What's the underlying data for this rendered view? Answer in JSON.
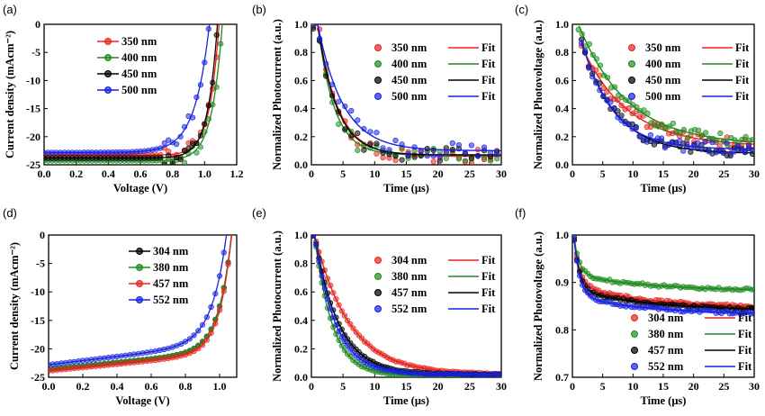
{
  "colors": {
    "red": "#e8231c",
    "green": "#1e8c1e",
    "black": "#000000",
    "blue": "#1822e0"
  },
  "chart_data": [
    {
      "panel": "(a)",
      "type": "scatter",
      "xlabel": "Voltage (V)",
      "ylabel": "Current density (mAcm⁻²)",
      "xlim": [
        0,
        1.2
      ],
      "ylim": [
        -25,
        0
      ],
      "xticks": [
        "0.0",
        "0.2",
        "0.4",
        "0.6",
        "0.8",
        "1.0",
        "1.2"
      ],
      "yticks": [
        "0",
        "-5",
        "-10",
        "-15",
        "-20",
        "-25"
      ],
      "series": [
        {
          "name": "350 nm",
          "color": "red",
          "jsc": -23.3,
          "voc": 1.09,
          "n": 0.06,
          "start": 0.68
        },
        {
          "name": "400 nm",
          "color": "green",
          "jsc": -24.3,
          "voc": 1.11,
          "n": 0.065,
          "start": 0.85
        },
        {
          "name": "450 nm",
          "color": "black",
          "jsc": -23.8,
          "voc": 1.08,
          "n": 0.06,
          "start": 0.7
        },
        {
          "name": "500 nm",
          "color": "blue",
          "jsc": -22.8,
          "voc": 1.03,
          "n": 0.09,
          "start": 0.6
        }
      ]
    },
    {
      "panel": "(b)",
      "type": "scatter",
      "xlabel": "Time (μs)",
      "ylabel": "Normalized Photocurrent (a.u.)",
      "xlim": [
        0,
        30
      ],
      "ylim": [
        0,
        1.0
      ],
      "xticks": [
        "0",
        "5",
        "10",
        "15",
        "20",
        "25",
        "30"
      ],
      "yticks": [
        "0.0",
        "0.2",
        "0.4",
        "0.6",
        "0.8",
        "1.0"
      ],
      "fit_label": "Fit",
      "series": [
        {
          "name": "350 nm",
          "color": "red",
          "t0": 1,
          "tau": 3.2,
          "floor": 0.06
        },
        {
          "name": "400 nm",
          "color": "green",
          "t0": 1,
          "tau": 2.6,
          "floor": 0.07
        },
        {
          "name": "450 nm",
          "color": "black",
          "t0": 1,
          "tau": 3.0,
          "floor": 0.07
        },
        {
          "name": "500 nm",
          "color": "blue",
          "t0": 1,
          "tau": 4.0,
          "floor": 0.1
        }
      ]
    },
    {
      "panel": "(c)",
      "type": "scatter",
      "xlabel": "Time (μs)",
      "ylabel": "Normalized Photovoltage (a.u.)",
      "xlim": [
        0,
        30
      ],
      "ylim": [
        0,
        1.0
      ],
      "xticks": [
        "0",
        "5",
        "10",
        "15",
        "20",
        "25",
        "30"
      ],
      "yticks": [
        "0.0",
        "0.2",
        "0.4",
        "0.6",
        "0.8",
        "1.0"
      ],
      "fit_label": "Fit",
      "series": [
        {
          "name": "350 nm",
          "color": "red",
          "t0": 1.5,
          "amp": 0.72,
          "tau": 7.5,
          "floor": 0.13
        },
        {
          "name": "400 nm",
          "color": "green",
          "t0": 1.0,
          "amp": 0.86,
          "tau": 8.0,
          "floor": 0.14
        },
        {
          "name": "450 nm",
          "color": "black",
          "t0": 1.5,
          "amp": 0.8,
          "tau": 5.5,
          "floor": 0.08
        },
        {
          "name": "500 nm",
          "color": "blue",
          "t0": 1.5,
          "amp": 0.78,
          "tau": 5.0,
          "floor": 0.11
        }
      ]
    },
    {
      "panel": "(d)",
      "type": "scatter",
      "xlabel": "Voltage (V)",
      "ylabel": "Current density (mAcm⁻²)",
      "xlim": [
        0,
        1.1
      ],
      "ylim": [
        -25,
        0
      ],
      "xticks": [
        "0.0",
        "0.2",
        "0.4",
        "0.6",
        "0.8",
        "1.0"
      ],
      "yticks": [
        "0",
        "-5",
        "-10",
        "-15",
        "-20",
        "-25"
      ],
      "series": [
        {
          "name": "304 nm",
          "color": "black",
          "jsc": -23.6,
          "voc": 1.07,
          "n": 0.075,
          "slope": 3.0
        },
        {
          "name": "380 nm",
          "color": "green",
          "jsc": -23.6,
          "voc": 1.07,
          "n": 0.075,
          "slope": 3.0
        },
        {
          "name": "457 nm",
          "color": "red",
          "jsc": -23.9,
          "voc": 1.07,
          "n": 0.07,
          "slope": 3.0
        },
        {
          "name": "552 nm",
          "color": "blue",
          "jsc": -22.8,
          "voc": 1.04,
          "n": 0.085,
          "slope": 3.6
        }
      ]
    },
    {
      "panel": "(e)",
      "type": "scatter",
      "xlabel": "Time (μs)",
      "ylabel": "Normalized Photocurrent (a.u.)",
      "xlim": [
        0,
        30
      ],
      "ylim": [
        0,
        1.0
      ],
      "xticks": [
        "0",
        "5",
        "10",
        "15",
        "20",
        "25",
        "30"
      ],
      "yticks": [
        "0.0",
        "0.2",
        "0.4",
        "0.6",
        "0.8",
        "1.0"
      ],
      "fit_label": "Fit",
      "series": [
        {
          "name": "304 nm",
          "color": "red",
          "t0": 0.5,
          "tau": 5.5,
          "floor": 0.02
        },
        {
          "name": "380 nm",
          "color": "green",
          "t0": 0.5,
          "tau": 2.8,
          "floor": 0.01
        },
        {
          "name": "457 nm",
          "color": "black",
          "t0": 0.5,
          "tau": 3.8,
          "floor": 0.02
        },
        {
          "name": "552 nm",
          "color": "blue",
          "t0": 0.5,
          "tau": 3.3,
          "floor": 0.02
        }
      ]
    },
    {
      "panel": "(f)",
      "type": "scatter",
      "xlabel": "Time (μs)",
      "ylabel": "Normalized Photovoltage (a.u.)",
      "xlim": [
        0,
        30
      ],
      "ylim": [
        0.7,
        1.0
      ],
      "xticks": [
        "0",
        "5",
        "10",
        "15",
        "20",
        "25",
        "30"
      ],
      "yticks": [
        "0.7",
        "0.8",
        "0.9",
        "1.0"
      ],
      "fit_label": "Fit",
      "series": [
        {
          "name": "304 nm",
          "color": "red",
          "t0": 0.3,
          "fast": 0.1,
          "tau1": 0.9,
          "slow": 0.05,
          "tau2": 12,
          "floor": 0.845
        },
        {
          "name": "380 nm",
          "color": "green",
          "t0": 0.3,
          "fast": 0.075,
          "tau1": 0.9,
          "slow": 0.035,
          "tau2": 12,
          "floor": 0.882
        },
        {
          "name": "457 nm",
          "color": "black",
          "t0": 0.3,
          "fast": 0.105,
          "tau1": 0.9,
          "slow": 0.045,
          "tau2": 12,
          "floor": 0.84
        },
        {
          "name": "552 nm",
          "color": "blue",
          "t0": 0.3,
          "fast": 0.12,
          "tau1": 0.9,
          "slow": 0.04,
          "tau2": 12,
          "floor": 0.832
        }
      ]
    }
  ]
}
